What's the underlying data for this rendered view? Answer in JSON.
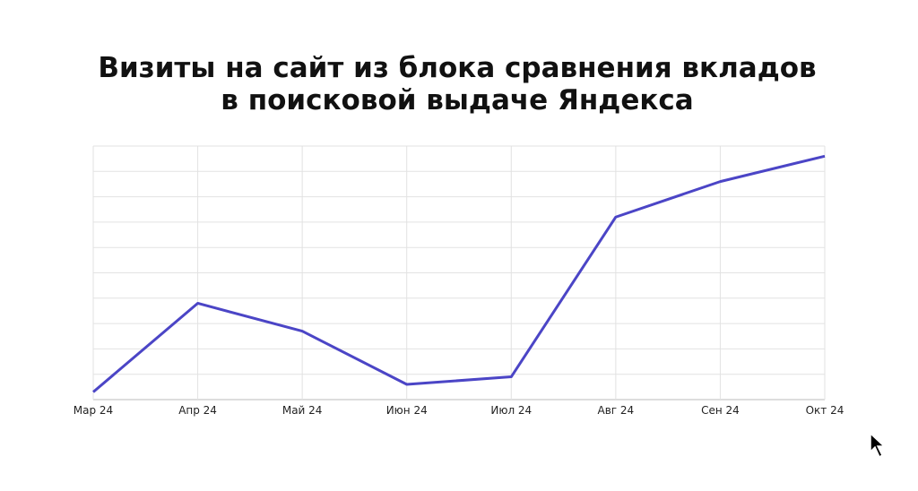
{
  "chart_data": {
    "type": "line",
    "title": [
      "Визиты на сайт из блока сравнения вкладов",
      "в поисковой выдаче Яндекса"
    ],
    "categories": [
      "Мар 24",
      "Апр 24",
      "Май 24",
      "Июн 24",
      "Июл 24",
      "Авг 24",
      "Сен 24",
      "Окт 24"
    ],
    "series": [
      {
        "color": "#4b45c6",
        "values": [
          0.3,
          3.8,
          2.7,
          0.6,
          0.9,
          7.2,
          8.6,
          9.6
        ]
      }
    ],
    "ylim": [
      0,
      10
    ],
    "yticks": [
      0,
      1,
      2,
      3,
      4,
      5,
      6,
      7,
      8,
      9,
      10
    ],
    "show_ytick_labels": false,
    "grid": true
  }
}
